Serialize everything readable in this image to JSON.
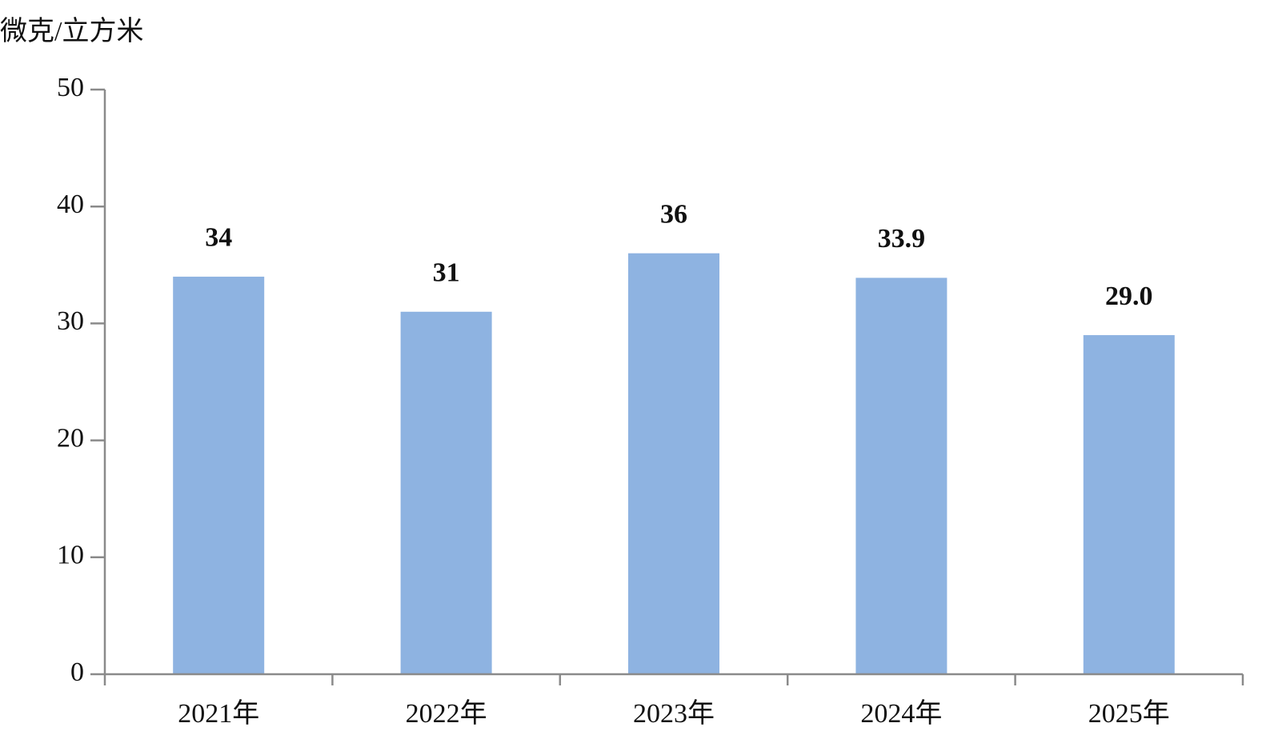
{
  "chart_data": {
    "type": "bar",
    "y_label": "微克/立方米",
    "categories": [
      "2021年",
      "2022年",
      "2023年",
      "2024年",
      "2025年"
    ],
    "values": [
      34,
      31,
      36,
      33.9,
      29.0
    ],
    "value_labels": [
      "34",
      "31",
      "36",
      "33.9",
      "29.0"
    ],
    "color": "#8eb3e1",
    "ylim": [
      0,
      50
    ],
    "yticks": [
      0,
      10,
      20,
      30,
      40,
      50
    ],
    "grid": false
  }
}
